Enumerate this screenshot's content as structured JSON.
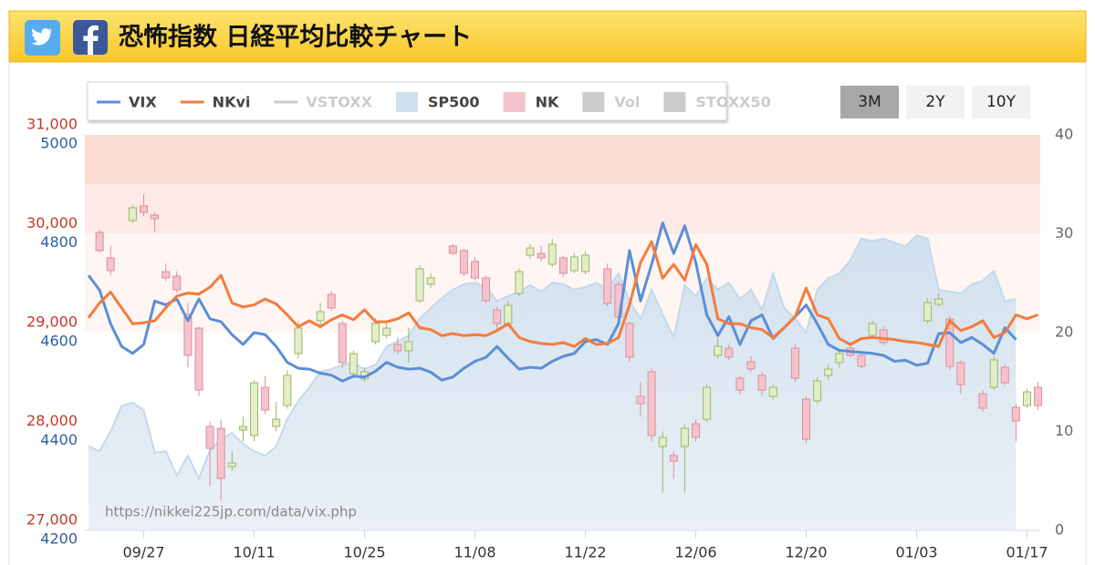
{
  "header": {
    "title": "恐怖指数 日経平均比較チャート"
  },
  "buttons": [
    "3M",
    "2Y",
    "10Y"
  ],
  "active_button": 0,
  "chart_data": {
    "type": "combo",
    "watermark": "https://nikkei225jp.com/data/vix.php",
    "categories": [
      null,
      null,
      null,
      null,
      null,
      "09/27",
      null,
      null,
      null,
      null,
      null,
      null,
      null,
      null,
      null,
      "10/11",
      null,
      null,
      null,
      null,
      null,
      null,
      null,
      null,
      null,
      "10/25",
      null,
      null,
      null,
      null,
      null,
      null,
      null,
      null,
      null,
      "11/08",
      null,
      null,
      null,
      null,
      null,
      null,
      null,
      null,
      null,
      "11/22",
      null,
      null,
      null,
      null,
      null,
      null,
      null,
      null,
      null,
      "12/06",
      null,
      null,
      null,
      null,
      null,
      null,
      null,
      null,
      null,
      "12/20",
      null,
      null,
      null,
      null,
      null,
      null,
      null,
      null,
      null,
      "01/03",
      null,
      null,
      null,
      null,
      null,
      null,
      null,
      null,
      null,
      "01/17",
      null
    ],
    "axes": {
      "nk": {
        "lim": [
          27000,
          31000
        ],
        "color": "#c0392b",
        "ticks": [
          {
            "value": 27000,
            "label": "27,000"
          },
          {
            "value": 28000,
            "label": "28,000"
          },
          {
            "value": 29000,
            "label": "29,000"
          },
          {
            "value": 30000,
            "label": "30,000"
          },
          {
            "value": 31000,
            "label": "31,000"
          }
        ]
      },
      "sp500": {
        "lim": [
          4200,
          5000
        ],
        "color": "#2e5f9e",
        "ticks": [
          4200,
          4400,
          4600,
          4800,
          5000
        ]
      },
      "vix": {
        "lim": [
          0,
          40
        ],
        "color": "#666666",
        "ticks": [
          0,
          10,
          20,
          30,
          40
        ]
      }
    },
    "bands": [
      {
        "from": 35,
        "to": 40,
        "color": "#fbdcd5"
      },
      {
        "from": 30,
        "to": 35,
        "color": "#fde9e5"
      },
      {
        "from": 20,
        "to": 30,
        "color": "#fff6f4"
      }
    ],
    "series": [
      {
        "name": "VIX",
        "type": "line",
        "axis": "vix",
        "color": "#5b8fd6",
        "visible": true,
        "values": [
          25.8,
          24.3,
          20.9,
          18.6,
          17.9,
          18.8,
          23.2,
          22.8,
          23.4,
          21.2,
          23.4,
          21.4,
          21.1,
          19.8,
          18.8,
          20,
          19.8,
          18.6,
          17,
          16.4,
          16.3,
          15.9,
          15.7,
          15.1,
          15.6,
          15.5,
          16.1,
          17,
          16.5,
          16.3,
          16.4,
          16,
          15.2,
          15.5,
          16.4,
          17.1,
          17.5,
          18.6,
          17.4,
          16.3,
          16.5,
          16.4,
          17.1,
          17.6,
          17.9,
          19.1,
          19.3,
          18.8,
          20.9,
          28.3,
          23.2,
          26.9,
          31.1,
          28,
          30.8,
          27.1,
          21.8,
          19.7,
          21.6,
          18.8,
          21.2,
          21.8,
          19.4,
          20.5,
          21.6,
          22.8,
          20.9,
          18.8,
          18.2,
          18.1,
          18,
          17.9,
          17.7,
          17.1,
          17.2,
          16.7,
          16.9,
          19.9,
          20,
          19,
          19.5,
          18.8,
          17.9,
          20.5,
          19.3,
          null,
          null
        ]
      },
      {
        "name": "NKvi",
        "type": "line",
        "axis": "vix",
        "color": "#f47c3c",
        "visible": true,
        "values": [
          21.5,
          23,
          24.1,
          22.5,
          20.9,
          21,
          21.2,
          22.5,
          23.7,
          24,
          23.9,
          24.6,
          25.8,
          23,
          22.6,
          22.8,
          23.4,
          22.9,
          21.8,
          20.6,
          21.2,
          20.6,
          21.3,
          21.8,
          21.3,
          22.3,
          21.1,
          21.1,
          21.4,
          22,
          20.5,
          20.3,
          19.7,
          19.9,
          19.7,
          19.8,
          19.7,
          20.2,
          20.9,
          19.5,
          19.1,
          18.9,
          18.8,
          19,
          18.6,
          19.4,
          18.8,
          18.9,
          19.5,
          22.8,
          27.1,
          29.2,
          25.5,
          26.9,
          25.3,
          28.9,
          26.9,
          21.4,
          20.9,
          20.9,
          20.5,
          20.3,
          19.5,
          20.5,
          21.6,
          24.5,
          21.8,
          21.4,
          19.4,
          18.8,
          19.4,
          19.5,
          19.4,
          19.3,
          19.1,
          19,
          18.8,
          18.6,
          21.2,
          20.2,
          20.6,
          21.2,
          19.5,
          20,
          21.8,
          21.4,
          21.8
        ]
      },
      {
        "name": "VSTOXX",
        "type": "line",
        "axis": "vix",
        "color": "#cccccc",
        "visible": false
      },
      {
        "name": "SP500",
        "type": "area",
        "axis": "sp500",
        "color": "#cfe0ee",
        "visible": true,
        "values": [
          4370,
          4360,
          4400,
          4452,
          4458,
          4443,
          4357,
          4360,
          4311,
          4351,
          4305,
          4362,
          4384,
          4397,
          4375,
          4360,
          4351,
          4370,
          4425,
          4462,
          4489,
          4521,
          4526,
          4535,
          4539,
          4526,
          4535,
          4572,
          4582,
          4594,
          4628,
          4650,
          4670,
          4687,
          4698,
          4701,
          4692,
          4664,
          4674,
          4683,
          4696,
          4683,
          4701,
          4698,
          4687,
          4692,
          4701,
          4687,
          4720,
          4664,
          4628,
          4687,
          4637,
          4591,
          4696,
          4674,
          4710,
          4687,
          4701,
          4668,
          4687,
          4646,
          4720,
          4650,
          4628,
          4600,
          4687,
          4710,
          4720,
          4747,
          4790,
          4785,
          4790,
          4782,
          4775,
          4797,
          4790,
          4687,
          4683,
          4679,
          4698,
          4705,
          4725,
          4664,
          4668,
          null,
          null
        ]
      },
      {
        "name": "NK",
        "type": "candlestick",
        "axis": "nk",
        "color": "#f6c3cc",
        "up_color": "#e2eec6",
        "visible": true,
        "open": [
          null,
          30014,
          29756,
          null,
          30134,
          30281,
          30189,
          29617,
          29571,
          29184,
          29046,
          28051,
          28032,
          27645,
          28014,
          27959,
          28447,
          28051,
          28263,
          28788,
          null,
          29120,
          29387,
          29092,
          28585,
          28530,
          28908,
          28972,
          28880,
          28816,
          29323,
          29489,
          null,
          29876,
          29829,
          29719,
          29553,
          29230,
          29092,
          29396,
          29783,
          29802,
          29691,
          29756,
          29627,
          29617,
          null,
          29645,
          29488,
          29092,
          28355,
          28604,
          27848,
          27756,
          27848,
          28078,
          28124,
          28770,
          28843,
          28539,
          28705,
          28567,
          28355,
          null,
          28843,
          28327,
          28309,
          28567,
          28696,
          28843,
          28770,
          28972,
          29028,
          null,
          null,
          null,
          29120,
          29286,
          29138,
          28696,
          null,
          28382,
          28447,
          28650,
          28244,
          28263,
          28447
        ],
        "high": [
          null,
          30040,
          29876,
          null,
          30290,
          30400,
          30220,
          29700,
          29620,
          29300,
          29060,
          28100,
          28120,
          27800,
          28150,
          28520,
          28560,
          28300,
          28620,
          29120,
          null,
          29300,
          29420,
          29120,
          28820,
          28650,
          29150,
          29100,
          28950,
          29050,
          29680,
          29600,
          null,
          29900,
          29850,
          29760,
          29580,
          29260,
          29320,
          29650,
          29900,
          29880,
          29950,
          29780,
          29800,
          29820,
          null,
          29700,
          29520,
          29110,
          28500,
          28640,
          28000,
          27800,
          28070,
          28120,
          28480,
          28950,
          28880,
          28560,
          28760,
          28600,
          28480,
          null,
          28880,
          28360,
          28550,
          28680,
          28820,
          28880,
          28800,
          29120,
          29060,
          null,
          null,
          null,
          29350,
          29400,
          29170,
          28720,
          null,
          28420,
          28760,
          28680,
          28280,
          28430,
          28500
        ],
        "low": [
          null,
          29810,
          29580,
          null,
          30110,
          30180,
          30020,
          29520,
          29400,
          28650,
          28360,
          27450,
          27300,
          27600,
          27900,
          27900,
          28180,
          28000,
          28230,
          28740,
          null,
          29050,
          29220,
          28640,
          28540,
          28500,
          28880,
          28940,
          28780,
          28700,
          29300,
          29450,
          null,
          29780,
          29570,
          29530,
          29300,
          29040,
          29060,
          29370,
          29750,
          29720,
          29660,
          29560,
          29600,
          29590,
          null,
          29270,
          29120,
          28700,
          28150,
          27900,
          27380,
          27520,
          27380,
          27900,
          28100,
          28740,
          28720,
          28380,
          28600,
          28360,
          28320,
          null,
          28500,
          27880,
          28280,
          28520,
          28640,
          28750,
          28640,
          28950,
          28870,
          null,
          null,
          null,
          29090,
          29260,
          28620,
          28380,
          null,
          28200,
          28420,
          28470,
          27900,
          28240,
          28220
        ],
        "close": [
          null,
          29829,
          29627,
          null,
          30263,
          30217,
          30152,
          29553,
          29433,
          28770,
          28419,
          27829,
          27525,
          27682,
          28051,
          28493,
          28216,
          28124,
          28567,
          29046,
          null,
          29212,
          29249,
          28696,
          28788,
          28604,
          29092,
          29046,
          28816,
          28908,
          29645,
          29553,
          null,
          29802,
          29599,
          29553,
          29323,
          29092,
          29276,
          29617,
          29857,
          29756,
          29894,
          29599,
          29765,
          29783,
          null,
          29295,
          29157,
          28751,
          28281,
          27959,
          27940,
          27700,
          28032,
          27940,
          28447,
          28862,
          28751,
          28419,
          28631,
          28419,
          28447,
          null,
          28539,
          27922,
          28512,
          28631,
          28788,
          28770,
          28659,
          29092,
          28899,
          null,
          null,
          null,
          29304,
          29341,
          28659,
          28475,
          null,
          28235,
          28724,
          28493,
          28106,
          28401,
          28263
        ]
      },
      {
        "name": "Vol",
        "type": "bar",
        "axis": "vix",
        "color": "#cccccc",
        "visible": false
      },
      {
        "name": "STOXX50",
        "type": "area",
        "axis": "vix",
        "color": "#cccccc",
        "visible": false
      }
    ]
  }
}
